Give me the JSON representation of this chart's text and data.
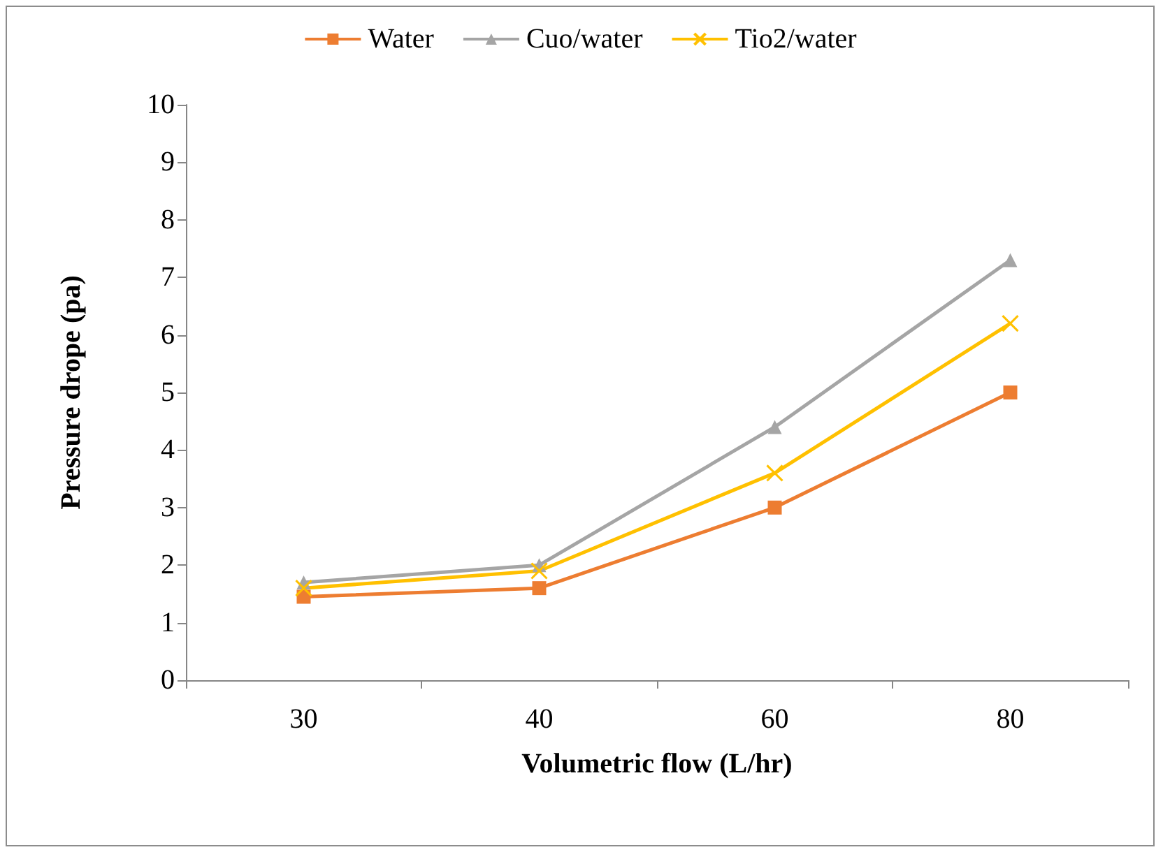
{
  "chart_data": {
    "type": "line",
    "xlabel": "Volumetric flow (L/hr)",
    "ylabel": "Pressure drope (pa)",
    "categories": [
      "30",
      "40",
      "60",
      "80"
    ],
    "series": [
      {
        "name": "Water",
        "color": "#ed7d31",
        "values": [
          1.45,
          1.6,
          3.0,
          5.0
        ],
        "marker": "square"
      },
      {
        "name": "Cuo/water",
        "color": "#a5a5a5",
        "values": [
          1.7,
          2.0,
          4.4,
          7.3
        ],
        "marker": "triangle"
      },
      {
        "name": "Tio2/water",
        "color": "#ffc000",
        "values": [
          1.6,
          1.9,
          3.6,
          6.2
        ],
        "marker": "cross"
      }
    ],
    "ylim": [
      0,
      10
    ],
    "yticks": [
      0,
      1,
      2,
      3,
      4,
      5,
      6,
      7,
      8,
      9,
      10
    ],
    "grid": false,
    "legend": "top",
    "line_style": "solid"
  }
}
